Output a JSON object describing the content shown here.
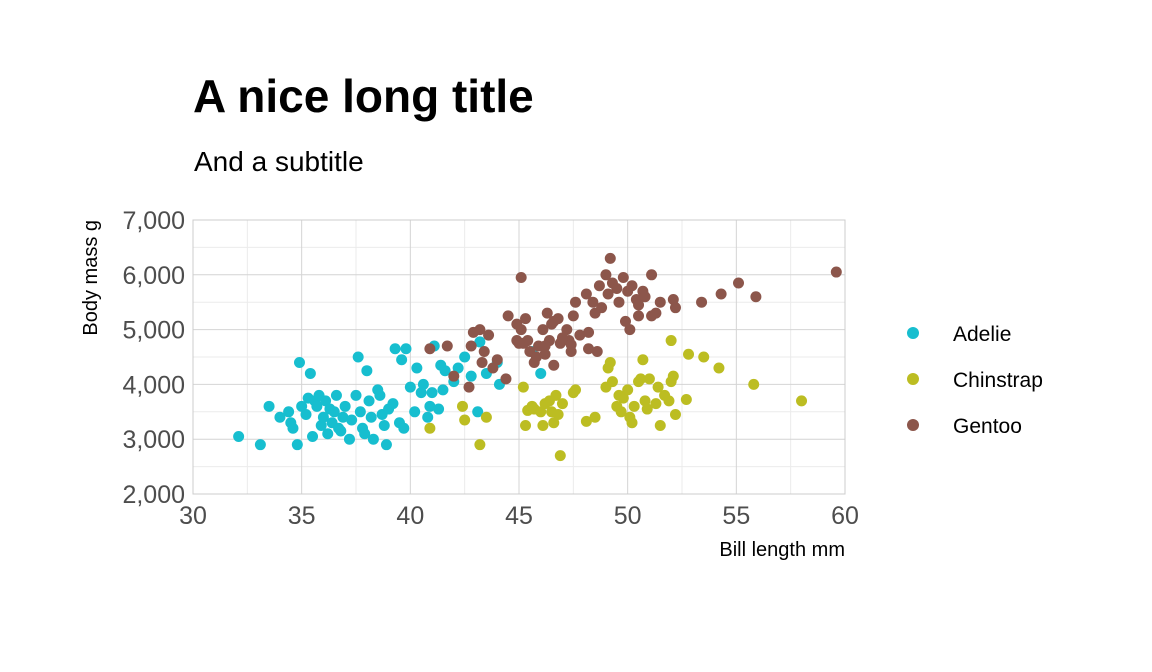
{
  "chart_data": {
    "type": "scatter",
    "title": "A nice long title",
    "subtitle": "And a subtitle",
    "xlabel": "Bill length mm",
    "ylabel": "Body mass g",
    "xlim": [
      30,
      60
    ],
    "ylim": [
      2000,
      7000
    ],
    "xticks": [
      30,
      35,
      40,
      45,
      50,
      55,
      60
    ],
    "xtick_labels": [
      "30",
      "35",
      "40",
      "45",
      "50",
      "55",
      "60"
    ],
    "yticks": [
      2000,
      3000,
      4000,
      5000,
      6000,
      7000
    ],
    "ytick_labels": [
      "2,000",
      "3,000",
      "4,000",
      "5,000",
      "6,000",
      "7,000"
    ],
    "grid": true,
    "legend_position": "right",
    "series": [
      {
        "name": "Adelie",
        "color": "#17becf",
        "points": [
          [
            32.1,
            3050
          ],
          [
            33.1,
            2900
          ],
          [
            33.5,
            3600
          ],
          [
            34.0,
            3400
          ],
          [
            34.4,
            3500
          ],
          [
            34.5,
            3300
          ],
          [
            34.6,
            3200
          ],
          [
            34.8,
            2900
          ],
          [
            34.9,
            4400
          ],
          [
            35.0,
            3600
          ],
          [
            35.2,
            3450
          ],
          [
            35.3,
            3750
          ],
          [
            35.4,
            4200
          ],
          [
            35.5,
            3050
          ],
          [
            35.6,
            3700
          ],
          [
            35.7,
            3600
          ],
          [
            35.8,
            3800
          ],
          [
            35.9,
            3250
          ],
          [
            36.0,
            3400
          ],
          [
            36.1,
            3700
          ],
          [
            36.2,
            3100
          ],
          [
            36.3,
            3550
          ],
          [
            36.4,
            3300
          ],
          [
            36.5,
            3500
          ],
          [
            36.6,
            3800
          ],
          [
            36.7,
            3200
          ],
          [
            36.8,
            3150
          ],
          [
            36.9,
            3400
          ],
          [
            37.0,
            3600
          ],
          [
            37.2,
            3000
          ],
          [
            37.3,
            3350
          ],
          [
            37.5,
            3800
          ],
          [
            37.6,
            4500
          ],
          [
            37.7,
            3500
          ],
          [
            37.8,
            3200
          ],
          [
            37.9,
            3100
          ],
          [
            38.0,
            4250
          ],
          [
            38.1,
            3700
          ],
          [
            38.2,
            3400
          ],
          [
            38.3,
            3000
          ],
          [
            38.5,
            3900
          ],
          [
            38.6,
            3800
          ],
          [
            38.7,
            3450
          ],
          [
            38.8,
            3250
          ],
          [
            38.9,
            2900
          ],
          [
            39.0,
            3550
          ],
          [
            39.2,
            3650
          ],
          [
            39.3,
            4650
          ],
          [
            39.5,
            3300
          ],
          [
            39.6,
            4450
          ],
          [
            39.7,
            3200
          ],
          [
            39.8,
            4650
          ],
          [
            40.0,
            3950
          ],
          [
            40.2,
            3500
          ],
          [
            40.3,
            4300
          ],
          [
            40.5,
            3850
          ],
          [
            40.6,
            4000
          ],
          [
            40.8,
            3400
          ],
          [
            40.9,
            3600
          ],
          [
            41.0,
            3850
          ],
          [
            41.1,
            4700
          ],
          [
            41.3,
            3550
          ],
          [
            41.4,
            4350
          ],
          [
            41.5,
            3900
          ],
          [
            41.6,
            4250
          ],
          [
            42.0,
            4050
          ],
          [
            42.2,
            4300
          ],
          [
            42.5,
            4500
          ],
          [
            42.8,
            4150
          ],
          [
            43.1,
            3500
          ],
          [
            43.2,
            4775
          ],
          [
            43.5,
            4200
          ],
          [
            44.0,
            4400
          ],
          [
            44.1,
            4000
          ],
          [
            45.6,
            4600
          ],
          [
            46.0,
            4200
          ]
        ]
      },
      {
        "name": "Chinstrap",
        "color": "#bcbd22",
        "points": [
          [
            40.9,
            3200
          ],
          [
            42.4,
            3600
          ],
          [
            42.5,
            3350
          ],
          [
            43.2,
            2900
          ],
          [
            43.5,
            3400
          ],
          [
            45.2,
            3950
          ],
          [
            45.3,
            3250
          ],
          [
            45.4,
            3525
          ],
          [
            45.6,
            3600
          ],
          [
            45.7,
            3550
          ],
          [
            46.0,
            3500
          ],
          [
            46.1,
            3250
          ],
          [
            46.2,
            3650
          ],
          [
            46.4,
            3700
          ],
          [
            46.5,
            3500
          ],
          [
            46.6,
            3300
          ],
          [
            46.7,
            3800
          ],
          [
            46.8,
            3450
          ],
          [
            46.9,
            2700
          ],
          [
            47.0,
            3650
          ],
          [
            47.5,
            3850
          ],
          [
            47.6,
            3900
          ],
          [
            48.1,
            3325
          ],
          [
            48.5,
            3400
          ],
          [
            49.0,
            3950
          ],
          [
            49.1,
            4300
          ],
          [
            49.2,
            4400
          ],
          [
            49.3,
            4050
          ],
          [
            49.5,
            3600
          ],
          [
            49.6,
            3800
          ],
          [
            49.7,
            3500
          ],
          [
            49.8,
            3750
          ],
          [
            50.0,
            3900
          ],
          [
            50.1,
            3400
          ],
          [
            50.2,
            3300
          ],
          [
            50.3,
            3600
          ],
          [
            50.5,
            4050
          ],
          [
            50.6,
            4100
          ],
          [
            50.7,
            4450
          ],
          [
            50.8,
            3700
          ],
          [
            50.9,
            3550
          ],
          [
            51.0,
            4100
          ],
          [
            51.3,
            3650
          ],
          [
            51.4,
            3950
          ],
          [
            51.5,
            3250
          ],
          [
            51.7,
            3800
          ],
          [
            51.9,
            3700
          ],
          [
            52.0,
            4050
          ],
          [
            52.1,
            4150
          ],
          [
            52.0,
            4800
          ],
          [
            52.2,
            3450
          ],
          [
            52.7,
            3725
          ],
          [
            52.8,
            4550
          ],
          [
            53.5,
            4500
          ],
          [
            54.2,
            4300
          ],
          [
            55.8,
            4000
          ],
          [
            58.0,
            3700
          ]
        ]
      },
      {
        "name": "Gentoo",
        "color": "#8c564b",
        "points": [
          [
            40.9,
            4650
          ],
          [
            41.7,
            4700
          ],
          [
            42.0,
            4150
          ],
          [
            42.7,
            3950
          ],
          [
            42.8,
            4700
          ],
          [
            42.9,
            4950
          ],
          [
            43.2,
            5000
          ],
          [
            43.3,
            4400
          ],
          [
            43.4,
            4600
          ],
          [
            43.6,
            4900
          ],
          [
            43.8,
            4300
          ],
          [
            44.0,
            4450
          ],
          [
            44.4,
            4100
          ],
          [
            44.5,
            5250
          ],
          [
            44.9,
            5100
          ],
          [
            45.1,
            5000
          ],
          [
            45.1,
            5950
          ],
          [
            45.2,
            4750
          ],
          [
            45.3,
            5200
          ],
          [
            45.4,
            4800
          ],
          [
            45.5,
            4600
          ],
          [
            45.7,
            4400
          ],
          [
            45.8,
            4500
          ],
          [
            45.9,
            4700
          ],
          [
            46.1,
            5000
          ],
          [
            46.2,
            4550
          ],
          [
            46.3,
            5300
          ],
          [
            46.4,
            4800
          ],
          [
            46.5,
            5100
          ],
          [
            46.6,
            4350
          ],
          [
            46.8,
            5200
          ],
          [
            46.9,
            4750
          ],
          [
            47.2,
            5000
          ],
          [
            47.3,
            4800
          ],
          [
            47.4,
            4600
          ],
          [
            47.5,
            5250
          ],
          [
            47.6,
            5500
          ],
          [
            47.8,
            4900
          ],
          [
            48.1,
            5650
          ],
          [
            48.2,
            4650
          ],
          [
            48.4,
            5500
          ],
          [
            48.5,
            5300
          ],
          [
            48.7,
            5800
          ],
          [
            48.8,
            5400
          ],
          [
            49.0,
            6000
          ],
          [
            49.1,
            5650
          ],
          [
            49.2,
            6300
          ],
          [
            49.3,
            5850
          ],
          [
            49.5,
            5750
          ],
          [
            49.6,
            5500
          ],
          [
            49.8,
            5950
          ],
          [
            50.0,
            5700
          ],
          [
            50.1,
            5000
          ],
          [
            50.2,
            5800
          ],
          [
            50.4,
            5550
          ],
          [
            50.5,
            5250
          ],
          [
            50.7,
            5700
          ],
          [
            50.8,
            5600
          ],
          [
            51.1,
            5250
          ],
          [
            51.1,
            6000
          ],
          [
            51.3,
            5300
          ],
          [
            51.5,
            5500
          ],
          [
            52.1,
            5550
          ],
          [
            52.2,
            5400
          ],
          [
            53.4,
            5500
          ],
          [
            54.3,
            5650
          ],
          [
            55.1,
            5850
          ],
          [
            55.9,
            5600
          ],
          [
            59.6,
            6050
          ],
          [
            46.2,
            4700
          ],
          [
            47.0,
            4850
          ],
          [
            48.2,
            4950
          ],
          [
            49.9,
            5150
          ],
          [
            45.0,
            4750
          ],
          [
            44.9,
            4800
          ],
          [
            50.5,
            5450
          ],
          [
            48.6,
            4600
          ],
          [
            47.4,
            4725
          ],
          [
            46.6,
            5150
          ]
        ]
      }
    ]
  }
}
